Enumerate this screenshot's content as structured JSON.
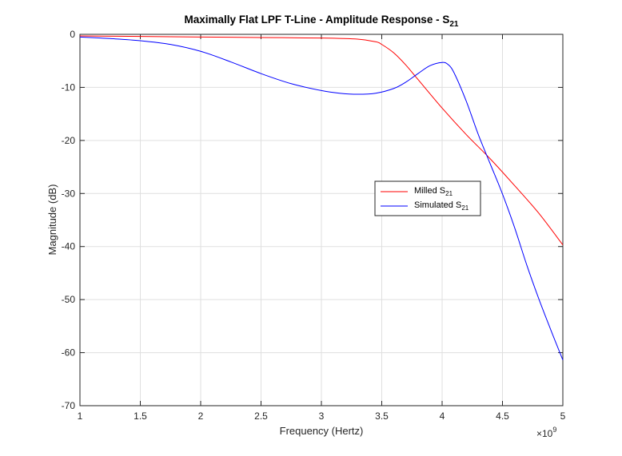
{
  "chart_data": {
    "type": "line",
    "title": "Maximally Flat LPF T-Line - Amplitude Response - S",
    "title_subscript": "21",
    "xlabel": "Frequency (Hertz)",
    "ylabel": "Magnitude (dB)",
    "x_exponent_base": "×10",
    "x_exponent_power": "9",
    "xlim": [
      1,
      5
    ],
    "ylim": [
      -70,
      0
    ],
    "xticks": [
      "1",
      "1.5",
      "2",
      "2.5",
      "3",
      "3.5",
      "4",
      "4.5",
      "5"
    ],
    "yticks": [
      "0",
      "-10",
      "-20",
      "-30",
      "-40",
      "-50",
      "-60",
      "-70"
    ],
    "xtick_values": [
      1,
      1.5,
      2,
      2.5,
      3,
      3.5,
      4,
      4.5,
      5
    ],
    "ytick_values": [
      0,
      -10,
      -20,
      -30,
      -40,
      -50,
      -60,
      -70
    ],
    "grid": true,
    "legend_position": "right-center",
    "series": [
      {
        "name": "Milled S",
        "name_subscript": "21",
        "color": "#ff0000",
        "x": [
          1.0,
          1.5,
          2.0,
          2.5,
          3.0,
          3.3,
          3.45,
          3.5,
          3.6,
          3.7,
          3.8,
          4.0,
          4.2,
          4.4,
          4.6,
          4.8,
          5.0
        ],
        "y": [
          -0.3,
          -0.4,
          -0.5,
          -0.6,
          -0.7,
          -0.9,
          -1.4,
          -1.9,
          -3.5,
          -5.8,
          -8.5,
          -13.9,
          -18.9,
          -23.5,
          -28.5,
          -33.7,
          -39.7
        ]
      },
      {
        "name": "Simulated S",
        "name_subscript": "21",
        "color": "#0000ff",
        "x": [
          1.0,
          1.25,
          1.5,
          1.75,
          2.0,
          2.25,
          2.5,
          2.75,
          3.0,
          3.15,
          3.3,
          3.45,
          3.6,
          3.7,
          3.8,
          3.9,
          4.0,
          4.05,
          4.1,
          4.2,
          4.3,
          4.4,
          4.5,
          4.6,
          4.7,
          4.8,
          4.9,
          5.0
        ],
        "y": [
          -0.5,
          -0.8,
          -1.2,
          -1.9,
          -3.2,
          -5.2,
          -7.4,
          -9.3,
          -10.6,
          -11.1,
          -11.3,
          -11.1,
          -10.2,
          -9.0,
          -7.4,
          -5.9,
          -5.3,
          -5.7,
          -7.3,
          -12.6,
          -18.9,
          -24.5,
          -30.1,
          -36.4,
          -43.4,
          -49.8,
          -55.7,
          -61.4
        ]
      }
    ]
  }
}
